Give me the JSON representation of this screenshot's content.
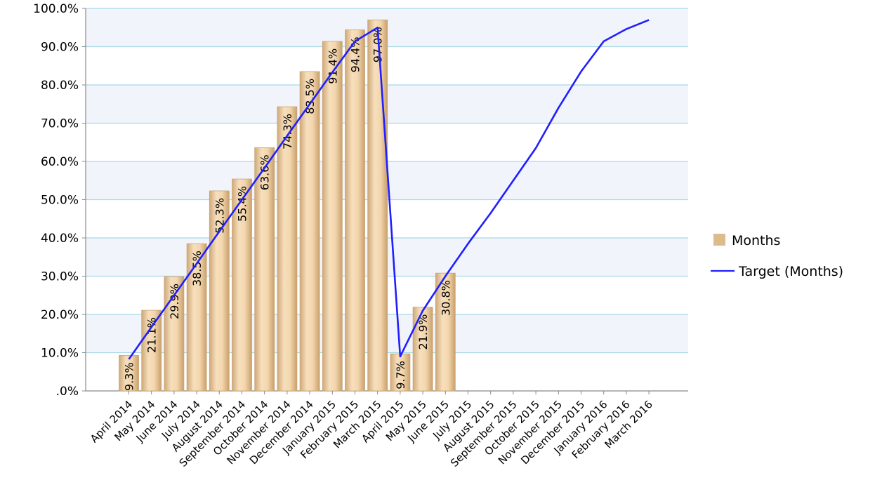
{
  "chart_data": {
    "type": "bar",
    "categories": [
      "April 2014",
      "May 2014",
      "June 2014",
      "July 2014",
      "August 2014",
      "September 2014",
      "October 2014",
      "November 2014",
      "December 2014",
      "January 2015",
      "February 2015",
      "March 2015",
      "April 2015",
      "May 2015",
      "June 2015",
      "July 2015",
      "August 2015",
      "September 2015",
      "October 2015",
      "November 2015",
      "December 2015",
      "January 2016",
      "February 2016",
      "March 2016"
    ],
    "series": [
      {
        "name": "Months",
        "kind": "bar",
        "color": "#dcbb8e",
        "values": [
          9.3,
          21.1,
          29.9,
          38.5,
          52.3,
          55.4,
          63.6,
          74.3,
          83.5,
          91.4,
          94.4,
          97.0,
          9.7,
          21.9,
          30.8,
          null,
          null,
          null,
          null,
          null,
          null,
          null,
          null,
          null
        ],
        "labels": [
          "9.3%",
          "21.1%",
          "29.9%",
          "38.5%",
          "52.3%",
          "55.4%",
          "63.6%",
          "74.3%",
          "83.5%",
          "91.4%",
          "94.4%",
          "97.0%",
          "9.7%",
          "21.9%",
          "30.8%",
          "",
          "",
          "",
          "",
          "",
          "",
          "",
          "",
          ""
        ]
      },
      {
        "name": "Target (Months)",
        "kind": "line",
        "color": "#1f1fff",
        "values": [
          8.3,
          16.7,
          25.0,
          33.3,
          41.7,
          50.0,
          58.3,
          66.7,
          75.0,
          83.3,
          91.4,
          95.0,
          9.0,
          21.0,
          30.0,
          38.5,
          46.5,
          55.0,
          63.5,
          74.0,
          83.5,
          91.4,
          94.6,
          97.0
        ]
      }
    ],
    "yticks": [
      ".0%",
      "10.0%",
      "20.0%",
      "30.0%",
      "40.0%",
      "50.0%",
      "60.0%",
      "70.0%",
      "80.0%",
      "90.0%",
      "100.0%"
    ],
    "ylim": [
      0,
      100
    ],
    "grid": true,
    "legend_position": "right"
  }
}
